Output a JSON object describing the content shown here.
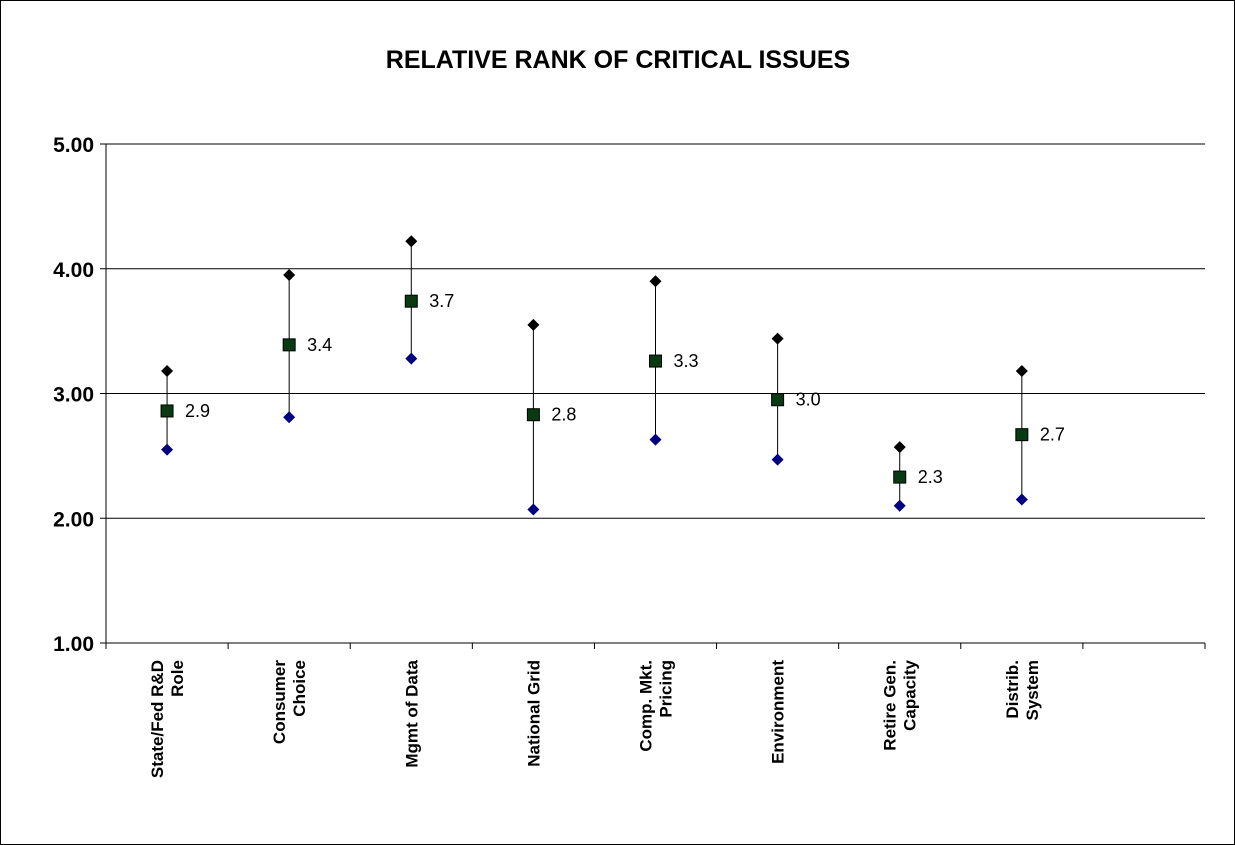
{
  "chart_data": {
    "type": "scatter",
    "title": "RELATIVE RANK OF CRITICAL ISSUES",
    "xlabel": "",
    "ylabel": "",
    "ylim": [
      1,
      5
    ],
    "yticks": [
      "1.00",
      "2.00",
      "3.00",
      "4.00",
      "5.00"
    ],
    "categories": [
      [
        "State/Fed R&D",
        "Role"
      ],
      [
        "Consumer",
        "Choice"
      ],
      [
        "Mgmt of Data"
      ],
      [
        "National Grid"
      ],
      [
        "Comp. Mkt.",
        "Pricing"
      ],
      [
        "Environment"
      ],
      [
        "Retire Gen.",
        "Capacity"
      ],
      [
        "Distrib.",
        "System"
      ]
    ],
    "grid": true,
    "legend": "none",
    "series": [
      {
        "values": [
          3.18,
          3.95,
          4.22,
          3.55,
          3.9,
          3.44,
          2.57,
          3.18
        ]
      },
      {
        "values": [
          2.86,
          3.39,
          3.74,
          2.83,
          3.26,
          2.95,
          2.33,
          2.67
        ]
      },
      {
        "values": [
          2.55,
          2.81,
          3.28,
          2.07,
          2.63,
          2.47,
          2.1,
          2.15
        ]
      }
    ],
    "data_labels": [
      "2.9",
      "3.4",
      "3.7",
      "2.8",
      "3.3",
      "3.0",
      "2.3",
      "2.7"
    ],
    "colors": {
      "high": "#000000",
      "mean": "#0a3a12",
      "low": "#000080",
      "line": "#000000"
    }
  }
}
